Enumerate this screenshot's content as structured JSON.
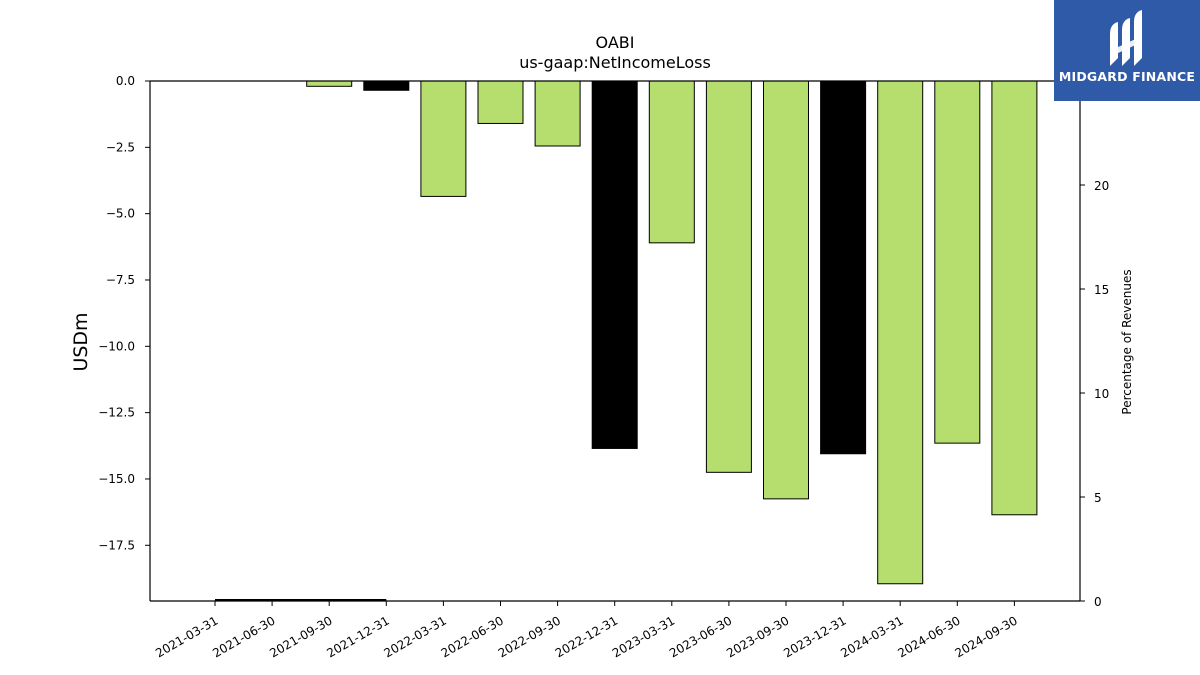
{
  "brand": {
    "name": "MIDGARD FINANCE",
    "logo_icon": "midgard-m-logo-icon",
    "background": "#2f5aa8"
  },
  "chart_data": {
    "type": "bar",
    "title": "OABI",
    "subtitle": "us-gaap:NetIncomeLoss",
    "ylabel": "USDm",
    "y2label": "Percentage of Revenues",
    "categories": [
      "2021-03-31",
      "2021-06-30",
      "2021-09-30",
      "2021-12-31",
      "2022-03-31",
      "2022-06-30",
      "2022-09-30",
      "2022-12-31",
      "2023-03-31",
      "2023-06-30",
      "2023-09-30",
      "2023-12-31",
      "2024-03-31",
      "2024-06-30",
      "2024-09-30"
    ],
    "values": [
      0,
      0,
      -0.2,
      -0.35,
      -4.35,
      -1.6,
      -2.45,
      -13.85,
      -6.1,
      -14.75,
      -15.75,
      -14.05,
      -18.95,
      -13.65,
      -16.35
    ],
    "bar_colors": [
      "#b5de6e",
      "#b5de6e",
      "#b5de6e",
      "#000000",
      "#b5de6e",
      "#b5de6e",
      "#b5de6e",
      "#000000",
      "#b5de6e",
      "#b5de6e",
      "#b5de6e",
      "#000000",
      "#b5de6e",
      "#b5de6e",
      "#b5de6e"
    ],
    "ylim": [
      -19.6,
      0
    ],
    "yticks": [
      0,
      -2.5,
      -5,
      -7.5,
      -10,
      -12.5,
      -15,
      -17.5
    ],
    "ytick_labels": [
      "0.0",
      "−2.5",
      "−5.0",
      "−7.5",
      "−10.0",
      "−12.5",
      "−15.0",
      "−17.5"
    ],
    "y2lim": [
      0,
      25
    ],
    "y2ticks": [
      0,
      5,
      10,
      15,
      20
    ],
    "y2tick_labels": [
      "0",
      "5",
      "10",
      "15",
      "20"
    ],
    "secondary_series": {
      "name": "",
      "values": [
        0,
        0,
        0,
        0
      ],
      "color": "#000000"
    },
    "grid": false
  }
}
